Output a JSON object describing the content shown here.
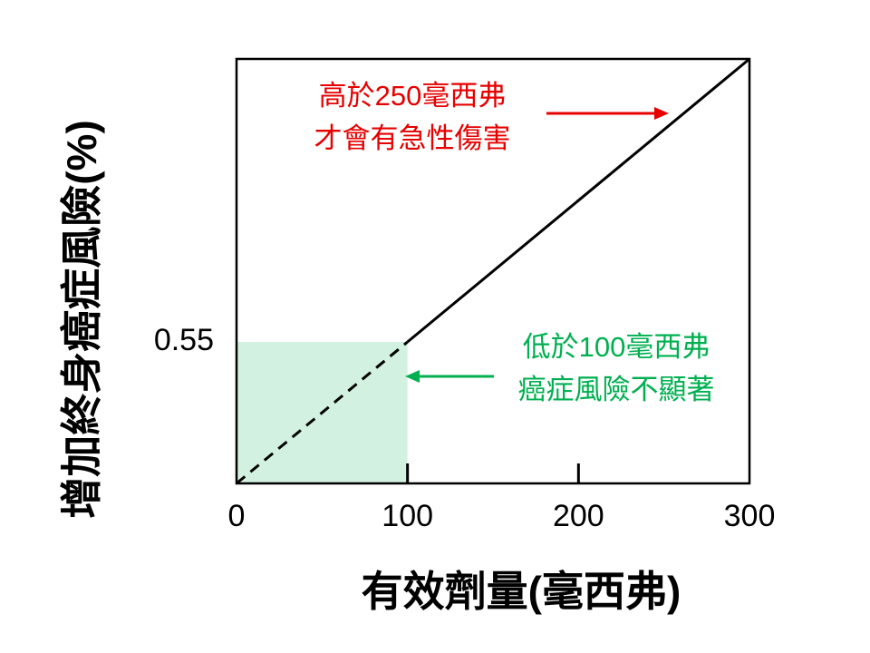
{
  "chart_data": {
    "type": "line",
    "x_label": "有效劑量(毫西弗)",
    "y_label": "增加終身癌症風險(%)",
    "x": [
      0,
      100,
      300
    ],
    "series": [
      {
        "color": "#000000",
        "style": "dashed",
        "values": [
          0,
          0.55,
          null
        ]
      },
      {
        "color": "#000000",
        "style": "solid",
        "values": [
          null,
          0.55,
          1.65
        ]
      }
    ],
    "shade_color": "#d3f1e0",
    "xlim": [
      0,
      300
    ],
    "xticks": [
      0,
      100,
      200,
      300
    ],
    "ylim": [
      0,
      1.65
    ],
    "yticks": [
      0.55
    ],
    "annotations": [
      {
        "lines": [
          "高於250毫西弗",
          "才會有急性傷害"
        ],
        "color": "#e60000"
      },
      {
        "lines": [
          "低於100毫西弗",
          "癌症風險不顯著"
        ],
        "color": "#00b050"
      }
    ]
  }
}
